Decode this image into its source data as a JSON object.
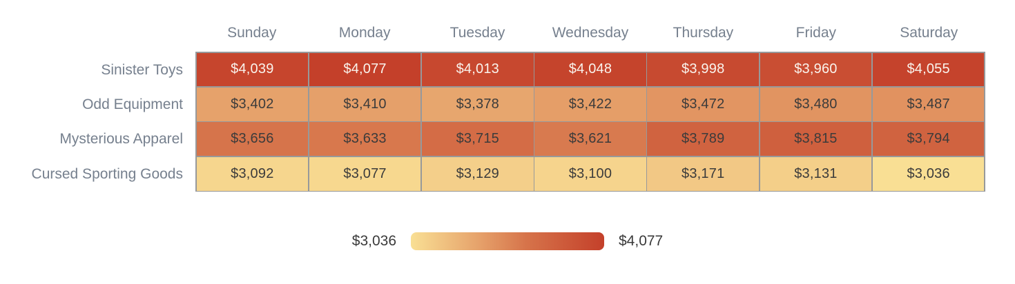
{
  "chart_data": {
    "type": "heatmap",
    "title": "",
    "columns": [
      "Sunday",
      "Monday",
      "Tuesday",
      "Wednesday",
      "Thursday",
      "Friday",
      "Saturday"
    ],
    "rows": [
      {
        "label": "Sinister Toys",
        "values": [
          4039,
          4077,
          4013,
          4048,
          3998,
          3960,
          4055
        ]
      },
      {
        "label": "Odd Equipment",
        "values": [
          3402,
          3410,
          3378,
          3422,
          3472,
          3480,
          3487
        ]
      },
      {
        "label": "Mysterious Apparel",
        "values": [
          3656,
          3633,
          3715,
          3621,
          3789,
          3815,
          3794
        ]
      },
      {
        "label": "Cursed Sporting Goods",
        "values": [
          3092,
          3077,
          3129,
          3100,
          3171,
          3131,
          3036
        ]
      }
    ],
    "value_prefix": "$",
    "min_value": 3036,
    "max_value": 4077,
    "legend": {
      "min_label": "$3,036",
      "max_label": "$4,077"
    },
    "colors": {
      "scale_stops": [
        {
          "t": 0.0,
          "color": "#F9DF94"
        },
        {
          "t": 0.35,
          "color": "#E6A26B"
        },
        {
          "t": 0.6,
          "color": "#D6734A"
        },
        {
          "t": 1.0,
          "color": "#C4402A"
        }
      ],
      "grid_line": "#97999b",
      "axis_text": "#76808e",
      "cell_text_dark": "#3b3b3b",
      "cell_text_light": "#faf4ed",
      "light_text_threshold": 0.8
    },
    "layout": {
      "grid": "off",
      "legend_position": "bottom-center"
    }
  }
}
